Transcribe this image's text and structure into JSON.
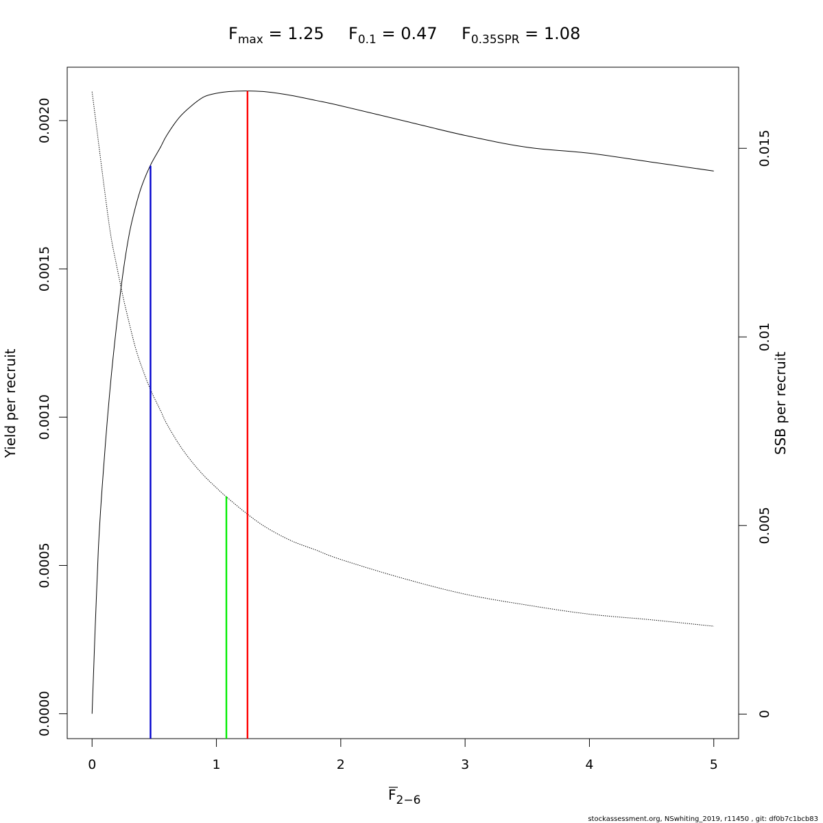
{
  "chart_data": {
    "type": "line",
    "title_parts": [
      {
        "base": "F",
        "sub": "max",
        "value": "= 1.25"
      },
      {
        "base": "F",
        "sub": "0.1",
        "value": "= 0.47"
      },
      {
        "base": "F",
        "sub": "0.35SPR",
        "value": "= 1.08"
      }
    ],
    "xlabel_base": "F",
    "xlabel_sub": "2−6",
    "ylabel_left": "Yield per recruit",
    "ylabel_right": "SSB per recruit",
    "xlim": [
      -0.2,
      5.2
    ],
    "ylim_left": [
      -8.4e-05,
      0.00218
    ],
    "ylim_right": [
      -0.00065,
      0.01715
    ],
    "x_ticks": [
      0,
      1,
      2,
      3,
      4,
      5
    ],
    "x_tick_labels": [
      "0",
      "1",
      "2",
      "3",
      "4",
      "5"
    ],
    "y_left_ticks": [
      0,
      0.0005,
      0.001,
      0.0015,
      0.002
    ],
    "y_left_tick_labels": [
      "0.0000",
      "0.0005",
      "0.0010",
      "0.0015",
      "0.0020"
    ],
    "y_right_ticks": [
      0,
      0.005,
      0.01,
      0.015
    ],
    "y_right_tick_labels": [
      "0",
      "0.005",
      "0.01",
      "0.015"
    ],
    "grid": false,
    "series": [
      {
        "axis": "left",
        "style": "solid",
        "color": "#000000",
        "points": [
          [
            0,
            0
          ],
          [
            0.05,
            0.00055
          ],
          [
            0.1,
            0.00087
          ],
          [
            0.15,
            0.00112
          ],
          [
            0.2,
            0.00132
          ],
          [
            0.25,
            0.00149
          ],
          [
            0.3,
            0.00162
          ],
          [
            0.35,
            0.00171
          ],
          [
            0.4,
            0.00178
          ],
          [
            0.47,
            0.00185
          ],
          [
            0.55,
            0.00191
          ],
          [
            0.6,
            0.00195
          ],
          [
            0.7,
            0.00201
          ],
          [
            0.8,
            0.00205
          ],
          [
            0.9,
            0.00208
          ],
          [
            1.0,
            0.002092
          ],
          [
            1.1,
            0.002098
          ],
          [
            1.25,
            0.0021
          ],
          [
            1.4,
            0.002097
          ],
          [
            1.6,
            0.002085
          ],
          [
            1.8,
            0.002068
          ],
          [
            2.0,
            0.00205
          ],
          [
            2.5,
            0.002
          ],
          [
            3.0,
            0.00195
          ],
          [
            3.5,
            0.00191
          ],
          [
            4.0,
            0.00189
          ],
          [
            4.5,
            0.00186
          ],
          [
            5.0,
            0.00183
          ]
        ]
      },
      {
        "axis": "right",
        "style": "dotted",
        "color": "#000000",
        "points": [
          [
            0,
            0.0165
          ],
          [
            0.05,
            0.0152
          ],
          [
            0.1,
            0.0139
          ],
          [
            0.15,
            0.0127
          ],
          [
            0.2,
            0.01185
          ],
          [
            0.25,
            0.01105
          ],
          [
            0.3,
            0.01035
          ],
          [
            0.35,
            0.0097
          ],
          [
            0.4,
            0.0092
          ],
          [
            0.47,
            0.0086
          ],
          [
            0.55,
            0.00805
          ],
          [
            0.6,
            0.0077
          ],
          [
            0.7,
            0.00715
          ],
          [
            0.8,
            0.0067
          ],
          [
            0.9,
            0.00632
          ],
          [
            1.0,
            0.006
          ],
          [
            1.08,
            0.00576
          ],
          [
            1.25,
            0.0053
          ],
          [
            1.4,
            0.00495
          ],
          [
            1.6,
            0.0046
          ],
          [
            1.8,
            0.00435
          ],
          [
            2.0,
            0.0041
          ],
          [
            2.5,
            0.0036
          ],
          [
            3.0,
            0.00318
          ],
          [
            3.5,
            0.00289
          ],
          [
            4.0,
            0.00265
          ],
          [
            4.5,
            0.0025
          ],
          [
            5.0,
            0.00233
          ]
        ]
      }
    ],
    "reference_lines": [
      {
        "x": 0.47,
        "y_top": 0.001848,
        "axis": "left",
        "color": "#0000CD"
      },
      {
        "x": 1.08,
        "y_top": 0.00577,
        "axis": "right",
        "color": "#00EE00"
      },
      {
        "x": 1.25,
        "y_top": 0.0021,
        "axis": "left",
        "color": "#FF0000"
      }
    ]
  },
  "footer": "stockassessment.org, NSwhiting_2019, r11450 , git: df0b7c1bcb83"
}
